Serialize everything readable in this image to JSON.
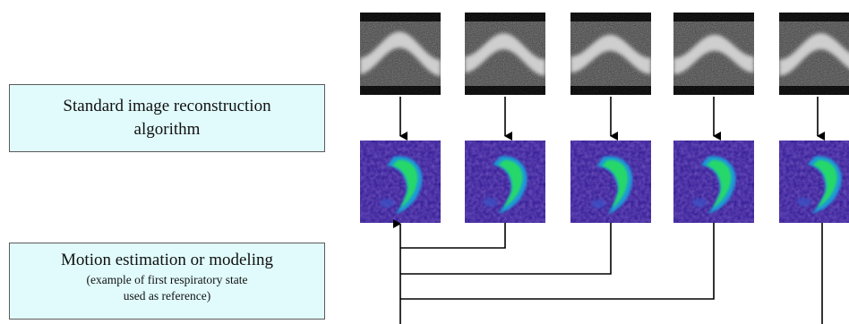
{
  "boxes": {
    "reconstruction": {
      "line1": "Standard image reconstruction",
      "line2": "algorithm"
    },
    "motion": {
      "title": "Motion estimation or modeling",
      "note_line1": "(example of first respiratory state",
      "note_line2": "used as reference)"
    }
  },
  "colors": {
    "box_fill": "#e1fbfc",
    "box_border": "#5a5a5a",
    "sinogram_bg": "#000000",
    "recon_bg": "#2a1590",
    "heart_outer": "#1f9ad8",
    "heart_inner": "#27d86a",
    "arrow": "#000000"
  },
  "respiratory_states": [
    {
      "sinogram": "sinogram-image",
      "reconstruction": "reconstructed-heart-image"
    },
    {
      "sinogram": "sinogram-image",
      "reconstruction": "reconstructed-heart-image"
    },
    {
      "sinogram": "sinogram-image",
      "reconstruction": "reconstructed-heart-image"
    },
    {
      "sinogram": "sinogram-image",
      "reconstruction": "reconstructed-heart-image"
    },
    {
      "sinogram": "sinogram-image",
      "reconstruction": "reconstructed-heart-image"
    }
  ]
}
